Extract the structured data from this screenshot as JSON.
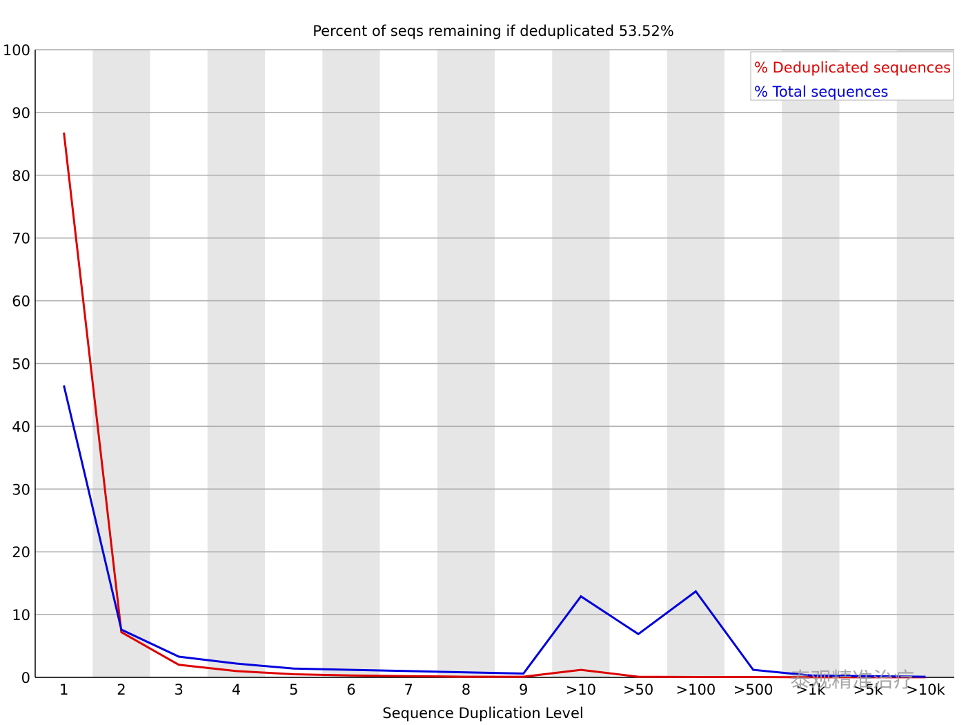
{
  "chart_data": {
    "type": "line",
    "title": "Percent of seqs remaining if deduplicated 53.52%",
    "xlabel": "Sequence Duplication Level",
    "ylabel": "",
    "categories": [
      "1",
      "2",
      "3",
      "4",
      "5",
      "6",
      "7",
      "8",
      "9",
      ">10",
      ">50",
      ">100",
      ">500",
      ">1k",
      ">5k",
      ">10k"
    ],
    "ylim": [
      0,
      100
    ],
    "yticks": [
      0,
      10,
      20,
      30,
      40,
      50,
      60,
      70,
      80,
      90,
      100
    ],
    "grid": true,
    "legend_position": "top-right",
    "series": [
      {
        "name": "% Deduplicated sequences",
        "color": "#dd0000",
        "values": [
          86.8,
          7.2,
          2.0,
          1.0,
          0.5,
          0.3,
          0.2,
          0.1,
          0.1,
          1.2,
          0.1,
          0.05,
          0.05,
          0.01,
          0.01,
          0.01
        ]
      },
      {
        "name": "% Total sequences",
        "color": "#0000dd",
        "values": [
          46.5,
          7.6,
          3.3,
          2.2,
          1.4,
          1.2,
          1.0,
          0.8,
          0.6,
          12.9,
          6.9,
          13.7,
          1.2,
          0.3,
          0.2,
          0.1
        ]
      }
    ],
    "band_color": "#e6e6e6",
    "grid_color": "#aaaaaa"
  },
  "watermark": {
    "text": "泰观精准治疗"
  }
}
